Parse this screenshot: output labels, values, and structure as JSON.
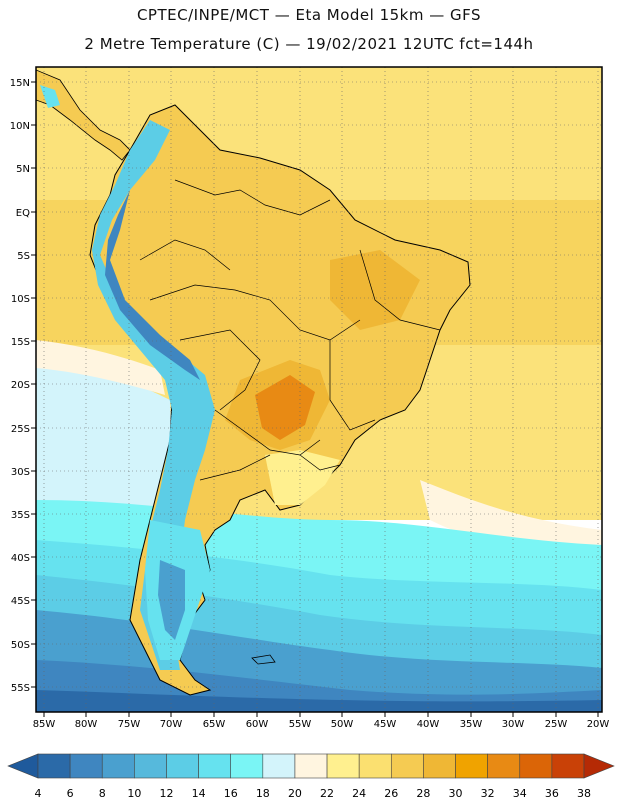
{
  "header": {
    "line1": "CPTEC/INPE/MCT —  Eta Model 15km — GFS",
    "line2": "2 Metre Temperature (C) — 19/02/2021 12UTC fct=144h"
  },
  "map": {
    "region": "South America",
    "lat_labels": [
      "15N",
      "10N",
      "5N",
      "EQ",
      "5S",
      "10S",
      "15S",
      "20S",
      "25S",
      "30S",
      "35S",
      "40S",
      "45S",
      "50S",
      "55S"
    ],
    "lon_labels": [
      "85W",
      "80W",
      "75W",
      "70W",
      "65W",
      "60W",
      "55W",
      "50W",
      "45W",
      "40W",
      "35W",
      "30W",
      "25W",
      "20W"
    ]
  },
  "colorbar": {
    "ticks": [
      "4",
      "6",
      "8",
      "10",
      "12",
      "14",
      "16",
      "18",
      "20",
      "22",
      "24",
      "26",
      "28",
      "30",
      "32",
      "34",
      "36",
      "38"
    ],
    "colors": [
      "#2b6aa8",
      "#3f86c0",
      "#4aa0cf",
      "#56b9dc",
      "#5ccde6",
      "#66e2ef",
      "#7af5f5",
      "#d3f4fb",
      "#fff5e0",
      "#fff08f",
      "#fbe070",
      "#f5cb52",
      "#efb735",
      "#f0a300",
      "#e88a14",
      "#db6507",
      "#c94107"
    ],
    "left_arrow_color": "#1f5a9c",
    "right_arrow_color": "#b52a05"
  },
  "palette": {
    "ocean_warm": "#fbe27a",
    "ocean_mid": "#fff08f",
    "ocean_cool": "#d3f4fb",
    "land_base": "#f5cb52"
  }
}
